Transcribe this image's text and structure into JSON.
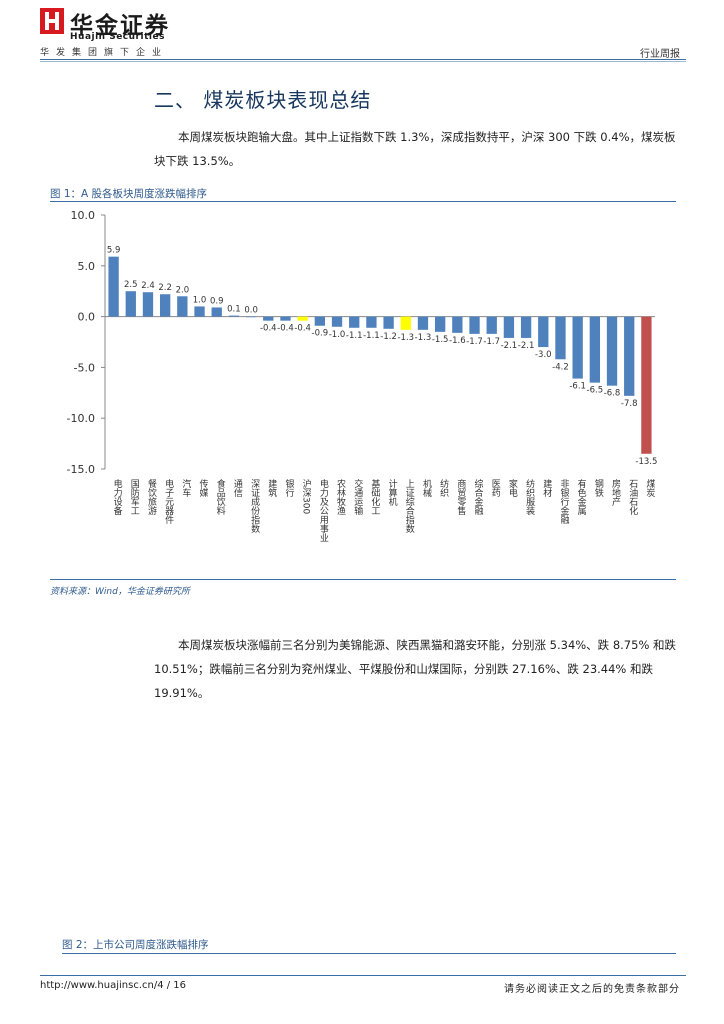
{
  "header": {
    "brand_cn": "华金证券",
    "brand_en": "Huajin Securities",
    "subsidiary": "华发集团旗下企业",
    "report_type": "行业周报"
  },
  "section": {
    "title": "二、 煤炭板块表现总结",
    "para1": "本周煤炭板块跑输大盘。其中上证指数下跌 1.3%，深成指数持平，沪深 300 下跌 0.4%，煤炭板块下跌 13.5%。",
    "para2": "本周煤炭板块涨幅前三名分别为美锦能源、陕西黑猫和潞安环能，分别涨 5.34%、跌 8.75% 和跌 10.51%；跌幅前三名分别为兖州煤业、平煤股份和山煤国际，分别跌 27.16%、跌 23.44% 和跌 19.91%。"
  },
  "figure1": {
    "caption": "图 1：A 股各板块周度涨跌幅排序",
    "source": "资料来源：Wind，华金证券研究所"
  },
  "figure2": {
    "caption": "图 2：上市公司周度涨跌幅排序"
  },
  "footer": {
    "url": "http://www.huajinsc.cn/4 / 16",
    "disclaimer": "请务必阅读正文之后的免责条款部分"
  },
  "colors": {
    "bar_default": "#4f81bd",
    "bar_index": "#ffff00",
    "bar_coal": "#c0504d",
    "accent": "#17375e"
  },
  "chart_data": {
    "type": "bar",
    "title": "",
    "xlabel": "",
    "ylabel": "",
    "ylim": [
      -15,
      10
    ],
    "yticks": [
      "10.0",
      "5.0",
      "0.0",
      "-5.0",
      "-10.0",
      "-15.0"
    ],
    "categories": [
      "电力设备",
      "国防军工",
      "餐饮旅游",
      "电子元器件",
      "汽车",
      "传媒",
      "食品饮料",
      "通信",
      "深证成份指数",
      "建筑",
      "银行",
      "沪深300",
      "电力及公用事业",
      "农林牧渔",
      "交通运输",
      "基础化工",
      "计算机",
      "上证综合指数",
      "机械",
      "纺织",
      "商贸零售",
      "综合金融",
      "医药",
      "家电",
      "纺织服装",
      "建材",
      "非银行金融",
      "有色金属",
      "钢铁",
      "房地产",
      "石油石化",
      "煤炭"
    ],
    "values": [
      5.9,
      2.5,
      2.4,
      2.2,
      2.0,
      1.0,
      0.9,
      0.1,
      0.0,
      -0.4,
      -0.4,
      -0.4,
      -0.9,
      -1.0,
      -1.1,
      -1.1,
      -1.2,
      -1.3,
      -1.3,
      -1.5,
      -1.6,
      -1.7,
      -1.7,
      -2.1,
      -2.1,
      -3.0,
      -4.2,
      -6.1,
      -6.5,
      -6.8,
      -7.8,
      -13.5
    ],
    "value_labels": [
      "5.9",
      "2.5",
      "2.4",
      "2.2",
      "2.0",
      "1.0",
      "0.9",
      "0.1",
      "0.0",
      "-0.4",
      "-0.4",
      "-0.4",
      "-0.9",
      "-1.0",
      "-1.1",
      "-1.1",
      "-1.2",
      "-1.3",
      "-1.3",
      "-1.5",
      "-1.6",
      "-1.7",
      "-1.7",
      "-2.1",
      "-2.1",
      "-3.0",
      "-4.2",
      "-6.1",
      "-6.5",
      "-6.8",
      "-7.8",
      "-13.5"
    ],
    "highlight_index": [
      11,
      17
    ],
    "highlight_coal": [
      31
    ],
    "grid": false,
    "legend": "none"
  }
}
